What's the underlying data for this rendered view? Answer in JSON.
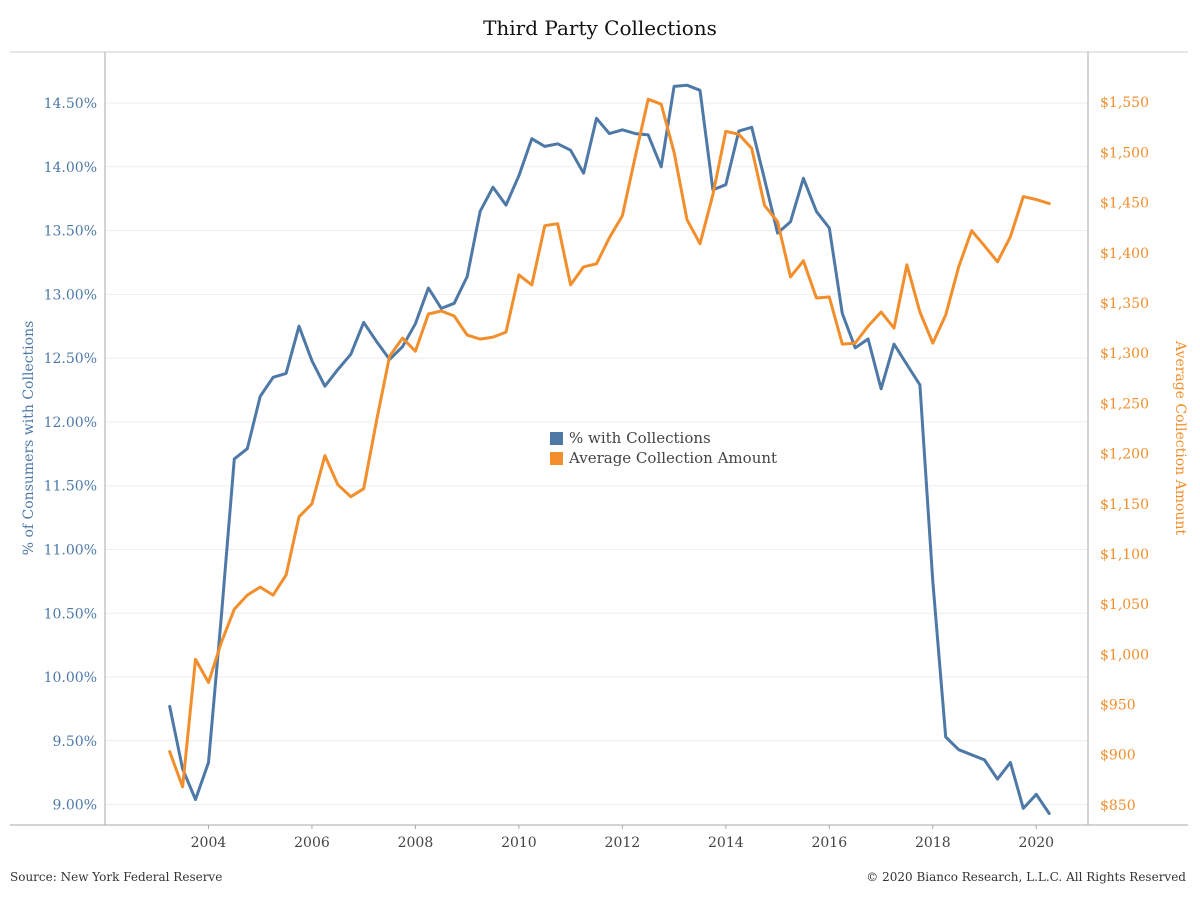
{
  "chart_data": {
    "type": "line",
    "title": "Third Party Collections",
    "ylabel": "% of Consumers with Collections",
    "ylabel_right": "Average Collection Amount",
    "ylim": [
      8.84,
      14.9
    ],
    "ylim_right": [
      830,
      1600
    ],
    "xlim": [
      2002.0,
      2021.0
    ],
    "x_ticks": [
      2004,
      2006,
      2008,
      2010,
      2012,
      2014,
      2016,
      2018,
      2020
    ],
    "x_tick_labels": [
      "2004",
      "2006",
      "2008",
      "2010",
      "2012",
      "2014",
      "2016",
      "2018",
      "2020"
    ],
    "y_ticks": [
      9.0,
      9.5,
      10.0,
      10.5,
      11.0,
      11.5,
      12.0,
      12.5,
      13.0,
      13.5,
      14.0,
      14.5
    ],
    "y_tick_labels": [
      "9.00%",
      "9.50%",
      "10.00%",
      "10.50%",
      "11.00%",
      "11.50%",
      "12.00%",
      "12.50%",
      "13.00%",
      "13.50%",
      "14.00%",
      "14.50%"
    ],
    "y_ticks_right": [
      850,
      900,
      950,
      1000,
      1050,
      1100,
      1150,
      1200,
      1250,
      1300,
      1350,
      1400,
      1450,
      1500,
      1550
    ],
    "y_tick_labels_right": [
      "$850",
      "$900",
      "$950",
      "$1,000",
      "$1,050",
      "$1,100",
      "$1,150",
      "$1,200",
      "$1,250",
      "$1,300",
      "$1,350",
      "$1,400",
      "$1,450",
      "$1,500",
      "$1,550"
    ],
    "grid": true,
    "legend_position": "center",
    "colors": {
      "pct": "#4e79a7",
      "amount": "#f28e2b",
      "axis": "#aaaaaa",
      "grid": "#eeeeee",
      "xtick": "#444444"
    },
    "series": [
      {
        "name": "% with Collections",
        "axis": "left",
        "x": [
          2003.25,
          2003.5,
          2003.75,
          2004.0,
          2004.25,
          2004.5,
          2004.75,
          2005.0,
          2005.25,
          2005.5,
          2005.75,
          2006.0,
          2006.25,
          2006.5,
          2006.75,
          2007.0,
          2007.25,
          2007.5,
          2007.75,
          2008.0,
          2008.25,
          2008.5,
          2008.75,
          2009.0,
          2009.25,
          2009.5,
          2009.75,
          2010.0,
          2010.25,
          2010.5,
          2010.75,
          2011.0,
          2011.25,
          2011.5,
          2011.75,
          2012.0,
          2012.25,
          2012.5,
          2012.75,
          2013.0,
          2013.25,
          2013.5,
          2013.75,
          2014.0,
          2014.25,
          2014.5,
          2014.75,
          2015.0,
          2015.25,
          2015.5,
          2015.75,
          2016.0,
          2016.25,
          2016.5,
          2016.75,
          2017.0,
          2017.25,
          2017.5,
          2017.75,
          2018.0,
          2018.25,
          2018.5,
          2018.75,
          2019.0,
          2019.25,
          2019.5,
          2019.75,
          2020.0,
          2020.25
        ],
        "values": [
          9.77,
          9.28,
          9.04,
          9.33,
          10.48,
          11.71,
          11.79,
          12.2,
          12.35,
          12.38,
          12.75,
          12.48,
          12.28,
          12.41,
          12.53,
          12.78,
          12.63,
          12.49,
          12.59,
          12.77,
          13.05,
          12.89,
          12.93,
          13.14,
          13.65,
          13.84,
          13.7,
          13.93,
          14.22,
          14.16,
          14.18,
          14.13,
          13.95,
          14.38,
          14.26,
          14.29,
          14.26,
          14.25,
          14.0,
          14.63,
          14.64,
          14.6,
          13.82,
          13.86,
          14.28,
          14.31,
          13.9,
          13.48,
          13.57,
          13.91,
          13.65,
          13.52,
          12.85,
          12.58,
          12.65,
          12.26,
          12.61,
          12.45,
          12.29,
          10.75,
          9.53,
          9.43,
          9.39,
          9.35,
          9.2,
          9.33,
          8.97,
          9.08,
          8.93
        ]
      },
      {
        "name": "Average Collection Amount",
        "axis": "right",
        "x": [
          2003.25,
          2003.5,
          2003.75,
          2004.0,
          2004.25,
          2004.5,
          2004.75,
          2005.0,
          2005.25,
          2005.5,
          2005.75,
          2006.0,
          2006.25,
          2006.5,
          2006.75,
          2007.0,
          2007.25,
          2007.5,
          2007.75,
          2008.0,
          2008.25,
          2008.5,
          2008.75,
          2009.0,
          2009.25,
          2009.5,
          2009.75,
          2010.0,
          2010.25,
          2010.5,
          2010.75,
          2011.0,
          2011.25,
          2011.5,
          2011.75,
          2012.0,
          2012.25,
          2012.5,
          2012.75,
          2013.0,
          2013.25,
          2013.5,
          2013.75,
          2014.0,
          2014.25,
          2014.5,
          2014.75,
          2015.0,
          2015.25,
          2015.5,
          2015.75,
          2016.0,
          2016.25,
          2016.5,
          2016.75,
          2017.0,
          2017.25,
          2017.5,
          2017.75,
          2018.0,
          2018.25,
          2018.5,
          2018.75,
          2019.0,
          2019.25,
          2019.5,
          2019.75,
          2020.0,
          2020.25
        ],
        "values": [
          903,
          868,
          995,
          972,
          1012,
          1045,
          1059,
          1067,
          1059,
          1079,
          1137,
          1150,
          1198,
          1169,
          1157,
          1165,
          1233,
          1297,
          1315,
          1302,
          1339,
          1342,
          1337,
          1318,
          1314,
          1316,
          1321,
          1378,
          1368,
          1427,
          1429,
          1368,
          1386,
          1389,
          1415,
          1437,
          1496,
          1553,
          1548,
          1500,
          1433,
          1409,
          1458,
          1521,
          1518,
          1504,
          1447,
          1431,
          1376,
          1392,
          1355,
          1356,
          1309,
          1310,
          1327,
          1341,
          1325,
          1388,
          1341,
          1310,
          1338,
          1386,
          1422,
          1407,
          1391,
          1416,
          1456,
          1453,
          1449
        ]
      }
    ]
  },
  "footer": {
    "source": "Source: New York Federal Reserve",
    "copyright": "© 2020 Bianco Research, L.L.C. All Rights Reserved"
  }
}
